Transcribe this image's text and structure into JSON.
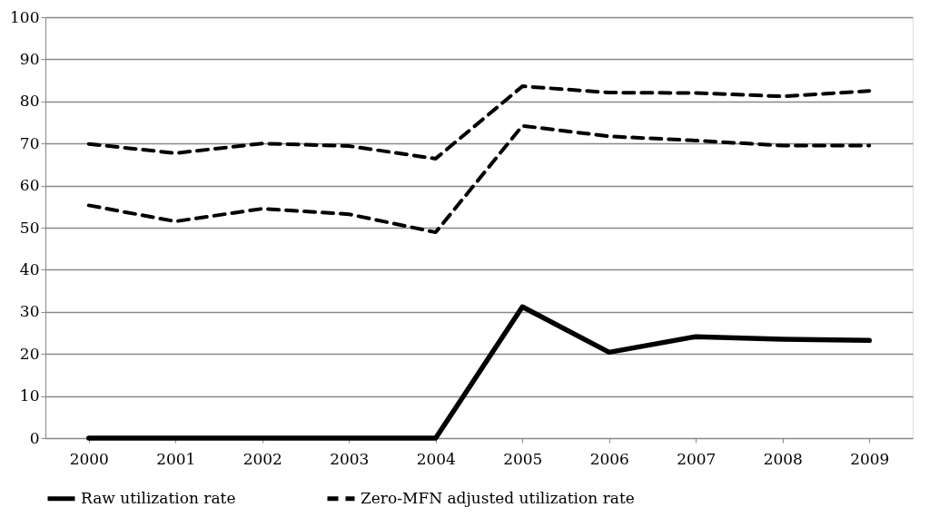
{
  "chart_data": {
    "type": "line",
    "categories": [
      "2000",
      "2001",
      "2002",
      "2003",
      "2004",
      "2005",
      "2006",
      "2007",
      "2008",
      "2009"
    ],
    "series": [
      {
        "name": "Raw utilization rate",
        "color": "#000000",
        "line_style": "solid",
        "values": [
          0,
          0,
          0,
          0,
          0,
          31.2,
          20.4,
          24.1,
          23.5,
          23.2
        ]
      },
      {
        "name": "Zero-MFN adjusted utilization rate",
        "color": "#000000",
        "line_style": "dashed",
        "values": [
          69.9,
          67.7,
          70.0,
          69.4,
          66.4,
          83.6,
          82.1,
          82.0,
          81.2,
          82.5
        ]
      },
      {
        "color": "#000000",
        "line_style": "dashed",
        "values": [
          55.3,
          51.5,
          54.5,
          53.2,
          48.9,
          74.2,
          71.7,
          70.7,
          69.5,
          69.5
        ]
      }
    ],
    "ylim": [
      0,
      100
    ],
    "yticks": [
      0,
      10,
      20,
      30,
      40,
      50,
      60,
      70,
      80,
      90,
      100
    ],
    "grid": "y",
    "legend": "bottom",
    "marker": "none"
  }
}
